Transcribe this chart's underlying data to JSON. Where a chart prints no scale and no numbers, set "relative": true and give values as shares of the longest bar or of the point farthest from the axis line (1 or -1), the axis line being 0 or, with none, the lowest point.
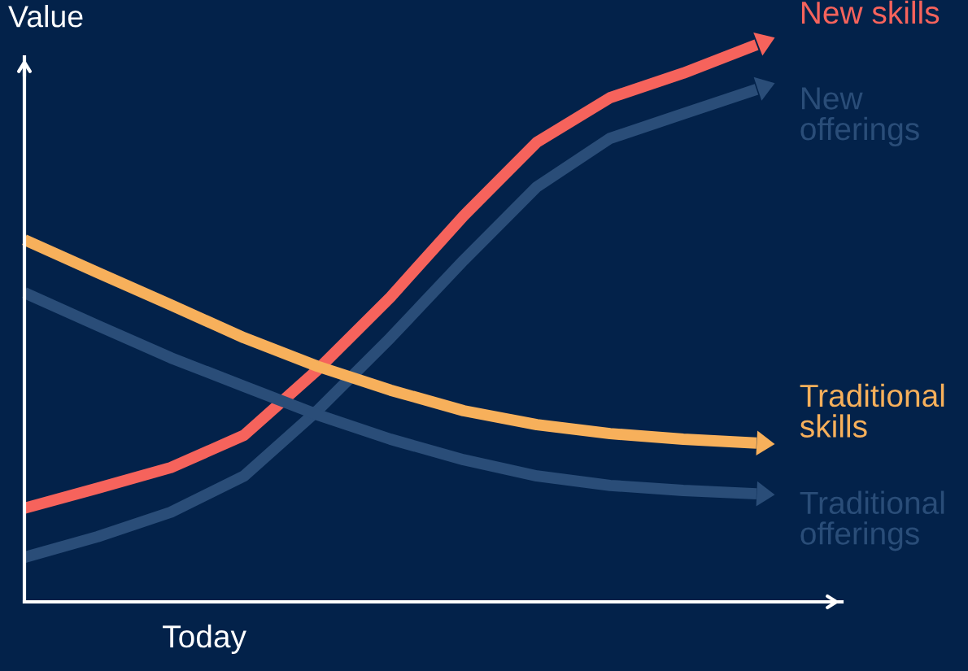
{
  "chart_data": {
    "type": "line",
    "relative": true,
    "xlabel": "Today",
    "ylabel": "Value",
    "legend": false,
    "grid": false,
    "tick_labels": false,
    "marker": "none",
    "line_style": "solid",
    "categories": [
      null,
      null,
      null,
      null,
      null,
      null,
      null,
      null,
      null,
      null,
      null
    ],
    "series": [
      {
        "name": "New skills",
        "color": "#f6635c",
        "values": [
          0.168,
          0.204,
          0.241,
          0.299,
          0.416,
          0.547,
          0.693,
          0.825,
          0.905,
          0.949,
          1.0
        ]
      },
      {
        "name": "New\nofferings",
        "color": "#2a4d78",
        "values": [
          0.08,
          0.117,
          0.161,
          0.226,
          0.343,
          0.474,
          0.613,
          0.745,
          0.832,
          0.876,
          0.92
        ]
      },
      {
        "name": "Traditional\nskills",
        "color": "#f7b05b",
        "values": [
          0.65,
          0.591,
          0.533,
          0.474,
          0.423,
          0.38,
          0.343,
          0.318,
          0.302,
          0.292,
          0.285
        ]
      },
      {
        "name": "Traditional\nofferings",
        "color": "#2a4d78",
        "values": [
          0.555,
          0.496,
          0.438,
          0.387,
          0.336,
          0.292,
          0.255,
          0.226,
          0.209,
          0.2,
          0.194
        ]
      }
    ]
  }
}
